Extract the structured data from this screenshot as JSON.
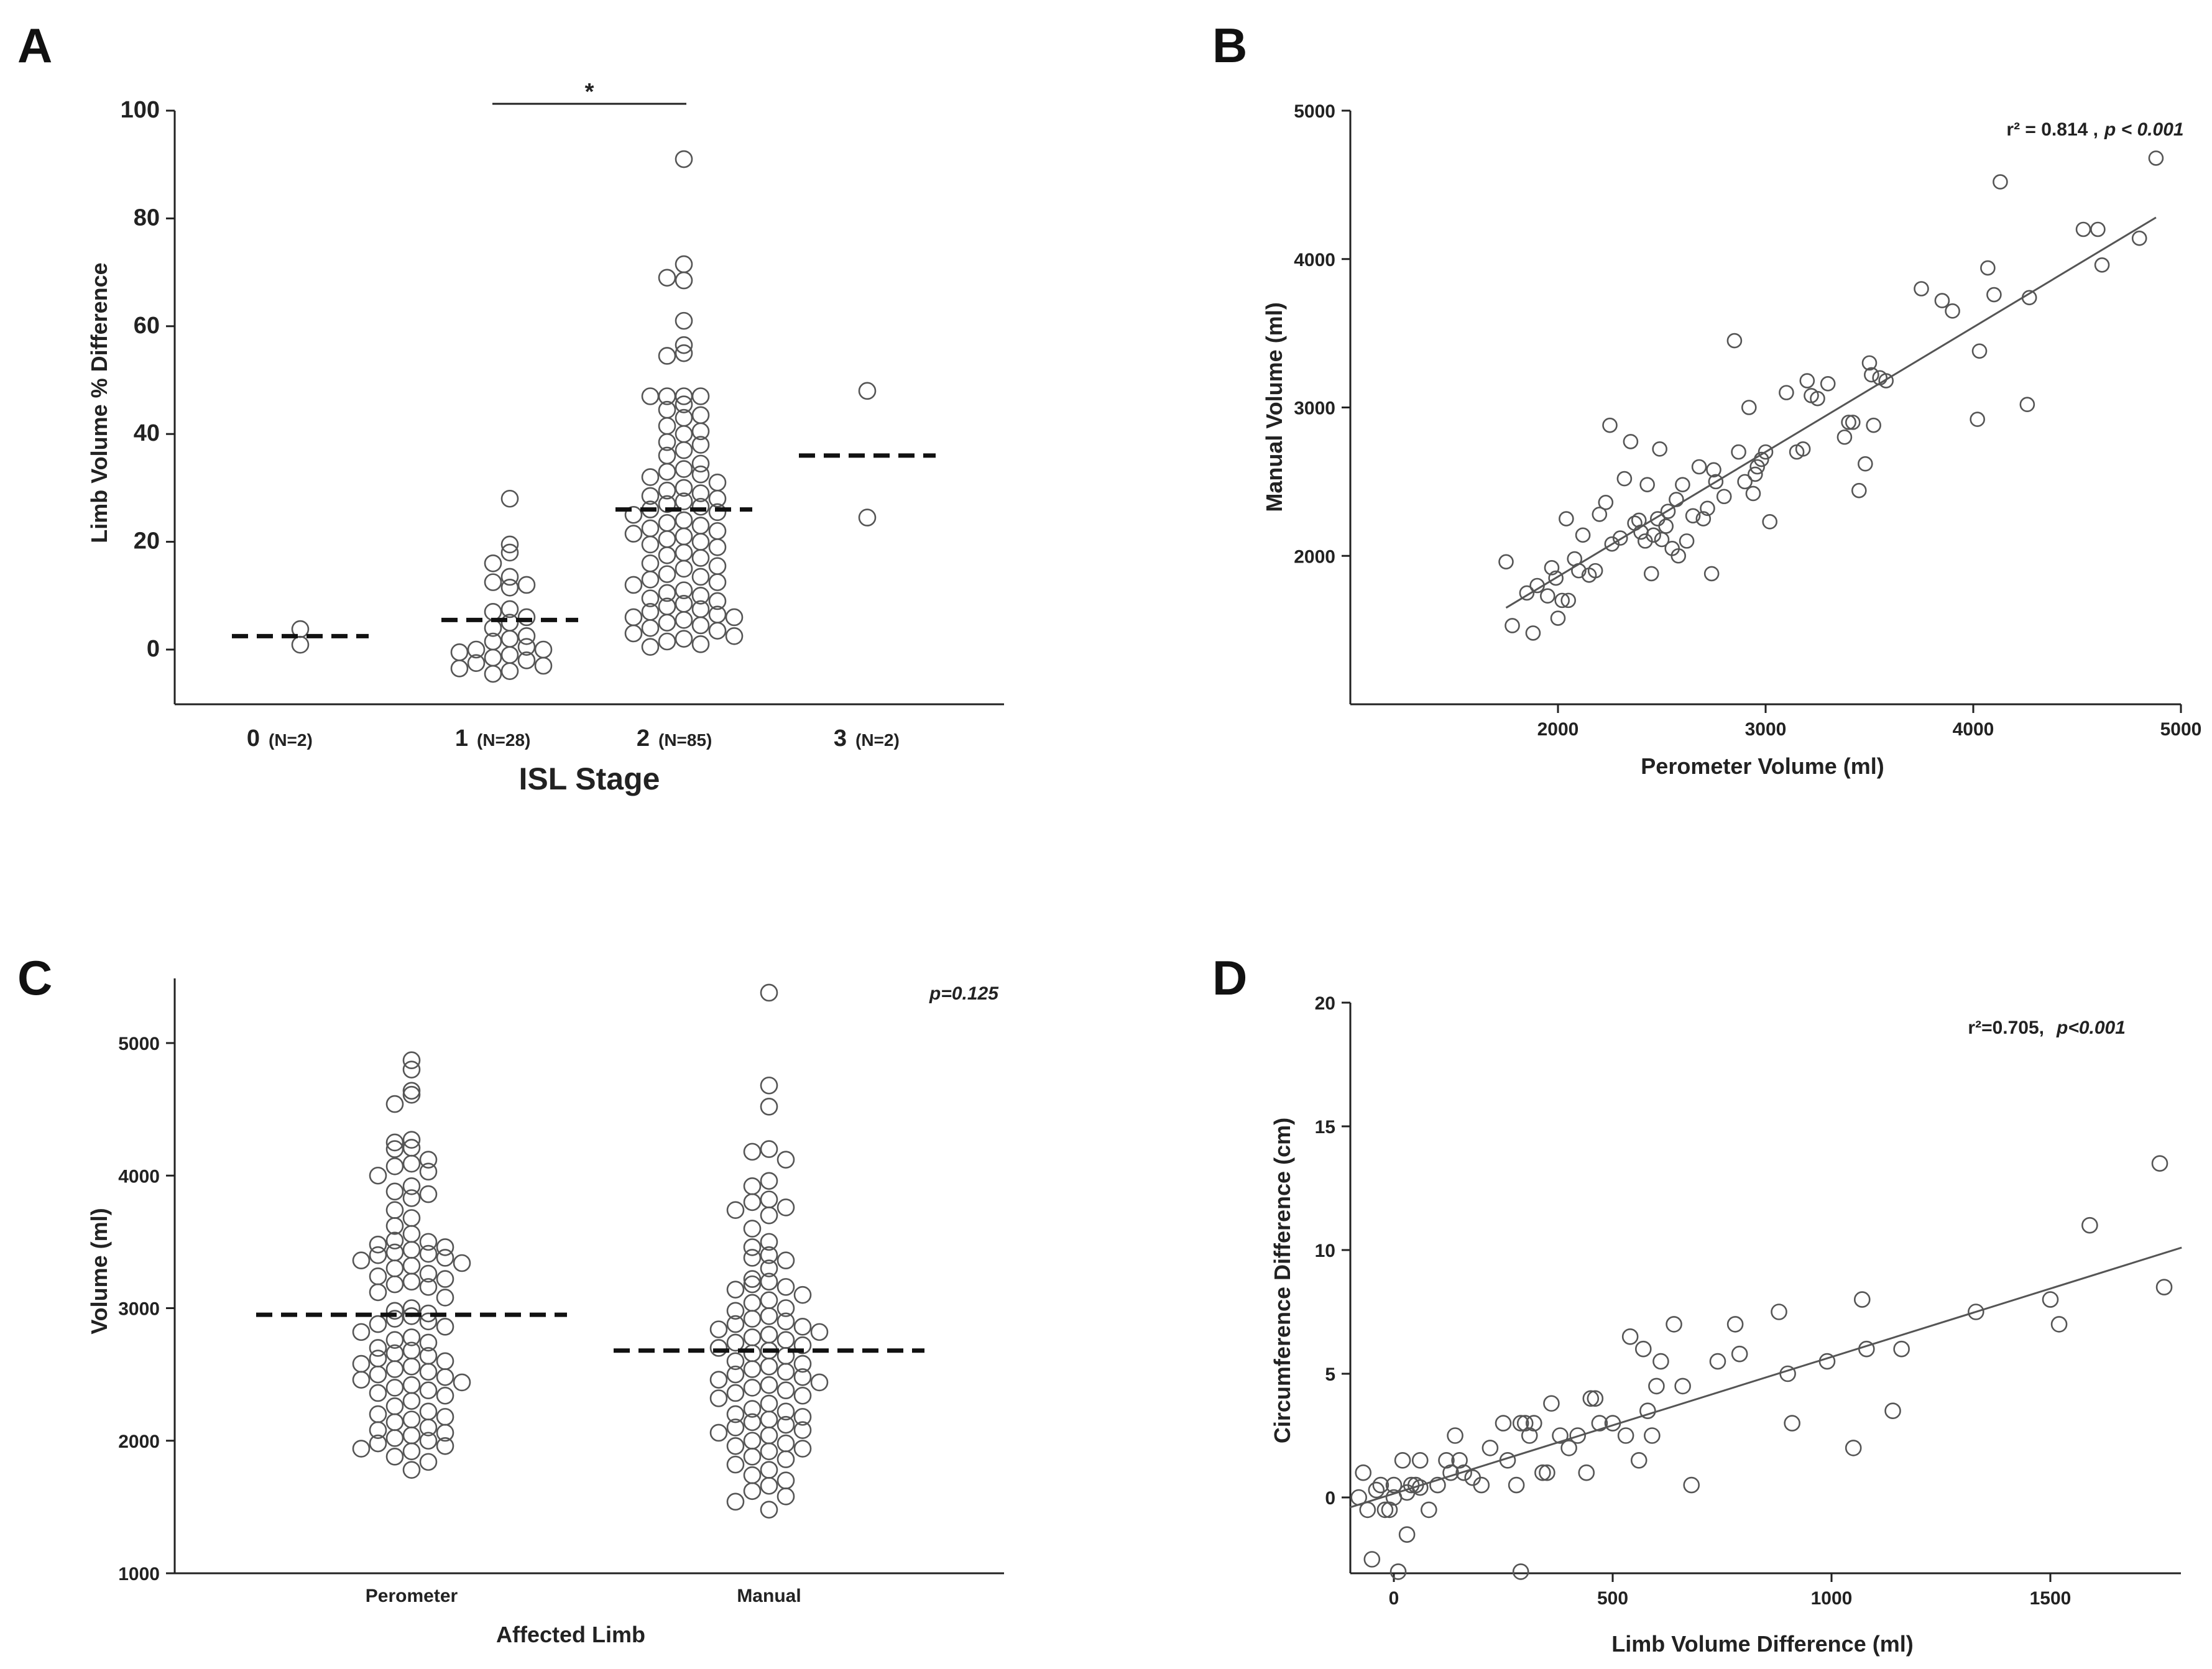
{
  "figure": {
    "panels": [
      "A",
      "B",
      "C",
      "D"
    ]
  },
  "chart_data": [
    {
      "id": "A",
      "type": "scatter",
      "subtype": "dot-strip",
      "title": "",
      "xlabel": "ISL Stage",
      "ylabel": "Limb Volume % Difference",
      "ylim": [
        -10,
        100
      ],
      "yticks": [
        0,
        20,
        40,
        60,
        80,
        100
      ],
      "categories": [
        "0",
        "1",
        "2",
        "3"
      ],
      "category_labels": [
        {
          "stage": "0",
          "n": "(N=2)"
        },
        {
          "stage": "1",
          "n": "(N=28)"
        },
        {
          "stage": "2",
          "n": "(N=85)"
        },
        {
          "stage": "3",
          "n": "(N=2)"
        }
      ],
      "means": [
        2.5,
        5.5,
        26,
        36
      ],
      "significance": {
        "from": "1",
        "to": "2",
        "label": "*"
      },
      "series": [
        {
          "name": "0",
          "values": [
            3.8,
            0.9
          ]
        },
        {
          "name": "1",
          "values": [
            28.0,
            19.5,
            18.0,
            16.0,
            13.5,
            12.5,
            12.0,
            11.5,
            7.5,
            7.0,
            6.0,
            5.0,
            4.0,
            2.5,
            2.0,
            1.5,
            0.5,
            0.0,
            0.0,
            -0.5,
            -1.0,
            -1.5,
            -2.0,
            -2.5,
            -3.0,
            -3.5,
            -4.0,
            -4.5
          ]
        },
        {
          "name": "2",
          "values": [
            91.0,
            71.5,
            69.0,
            68.5,
            61.0,
            56.5,
            55.0,
            54.5,
            47.0,
            47.0,
            47.0,
            47.0,
            45.5,
            44.5,
            43.5,
            43.0,
            41.5,
            40.5,
            40.0,
            38.5,
            38.0,
            37.0,
            36.0,
            34.5,
            33.5,
            33.0,
            32.5,
            32.0,
            31.0,
            30.0,
            29.5,
            29.0,
            28.5,
            28.0,
            27.5,
            27.0,
            26.5,
            26.0,
            25.5,
            25.0,
            24.0,
            23.5,
            23.0,
            22.5,
            22.0,
            21.5,
            21.0,
            20.5,
            20.0,
            19.5,
            19.0,
            18.0,
            17.5,
            17.0,
            16.0,
            15.5,
            15.0,
            14.0,
            13.5,
            13.0,
            12.5,
            12.0,
            11.0,
            10.5,
            10.0,
            9.5,
            9.0,
            8.5,
            8.0,
            7.5,
            7.0,
            6.5,
            6.0,
            6.0,
            5.5,
            5.0,
            4.5,
            4.0,
            3.5,
            3.0,
            2.5,
            2.0,
            1.5,
            1.0,
            0.5
          ]
        },
        {
          "name": "3",
          "values": [
            48.0,
            24.5
          ]
        }
      ]
    },
    {
      "id": "B",
      "type": "scatter",
      "title": "",
      "xlabel": "Perometer Volume (ml)",
      "ylabel": "Manual Volume (ml)",
      "xlim": [
        1000,
        5000
      ],
      "ylim": [
        1000,
        5000
      ],
      "xticks": [
        2000,
        3000,
        4000,
        5000
      ],
      "yticks": [
        2000,
        3000,
        4000,
        5000
      ],
      "annotation": {
        "text": "r² = 0.814 , p < 0.001",
        "r2_label": "r² = 0.814 ,",
        "p_label": "p < 0.001",
        "location": "top-right"
      },
      "fit_line": {
        "x": [
          1750,
          4880
        ],
        "y": [
          1650,
          4280
        ]
      },
      "x": [
        1750,
        1780,
        1850,
        1880,
        1900,
        1950,
        1970,
        1990,
        2000,
        2020,
        2040,
        2050,
        2080,
        2100,
        2120,
        2150,
        2180,
        2200,
        2230,
        2250,
        2260,
        2300,
        2320,
        2350,
        2370,
        2390,
        2400,
        2420,
        2430,
        2450,
        2460,
        2480,
        2490,
        2500,
        2520,
        2530,
        2550,
        2570,
        2580,
        2600,
        2620,
        2650,
        2680,
        2700,
        2720,
        2740,
        2750,
        2760,
        2800,
        2850,
        2870,
        2900,
        2920,
        2940,
        2950,
        2960,
        2980,
        3000,
        3020,
        3100,
        3150,
        3180,
        3200,
        3220,
        3250,
        3300,
        3380,
        3400,
        3420,
        3450,
        3480,
        3500,
        3510,
        3520,
        3550,
        3580,
        3750,
        3850,
        3900,
        4020,
        4030,
        4070,
        4100,
        4130,
        4260,
        4270,
        4530,
        4600,
        4620,
        4800,
        4880
      ],
      "y": [
        1960,
        1530,
        1750,
        1480,
        1800,
        1730,
        1920,
        1850,
        1580,
        1700,
        2250,
        1700,
        1980,
        1900,
        2140,
        1870,
        1900,
        2280,
        2360,
        2880,
        2080,
        2120,
        2520,
        2770,
        2220,
        2240,
        2160,
        2100,
        2480,
        1880,
        2140,
        2250,
        2720,
        2110,
        2200,
        2300,
        2050,
        2380,
        2000,
        2480,
        2100,
        2270,
        2600,
        2250,
        2320,
        1880,
        2580,
        2500,
        2400,
        3450,
        2700,
        2500,
        3000,
        2420,
        2550,
        2600,
        2650,
        2700,
        2230,
        3100,
        2700,
        2720,
        3180,
        3080,
        3060,
        3160,
        2800,
        2900,
        2900,
        2440,
        2620,
        3300,
        3220,
        2880,
        3200,
        3180,
        3800,
        3720,
        3650,
        2920,
        3380,
        3940,
        3760,
        4520,
        3020,
        3740,
        4200,
        4200,
        3960,
        4140,
        4680
      ]
    },
    {
      "id": "C",
      "type": "scatter",
      "subtype": "dot-strip",
      "title": "",
      "xlabel": "Affected Limb",
      "ylabel": "Volume (ml)",
      "ylim": [
        1000,
        5500
      ],
      "yticks": [
        1000,
        2000,
        3000,
        4000,
        5000
      ],
      "categories": [
        "Perometer",
        "Manual"
      ],
      "means": [
        2950,
        2680
      ],
      "annotation": {
        "text": "p=0.125",
        "location": "top-right"
      },
      "series": [
        {
          "name": "Perometer",
          "values": [
            4870,
            4800,
            4640,
            4610,
            4540,
            4270,
            4250,
            4210,
            4200,
            4120,
            4090,
            4070,
            4030,
            4000,
            3920,
            3880,
            3860,
            3830,
            3740,
            3680,
            3620,
            3560,
            3510,
            3500,
            3480,
            3460,
            3440,
            3420,
            3410,
            3400,
            3380,
            3360,
            3340,
            3320,
            3300,
            3260,
            3240,
            3220,
            3200,
            3180,
            3160,
            3120,
            3080,
            3000,
            2980,
            2960,
            2940,
            2920,
            2900,
            2880,
            2860,
            2820,
            2780,
            2760,
            2740,
            2700,
            2680,
            2660,
            2640,
            2620,
            2600,
            2580,
            2560,
            2540,
            2520,
            2500,
            2480,
            2460,
            2440,
            2420,
            2400,
            2380,
            2360,
            2340,
            2300,
            2260,
            2220,
            2200,
            2180,
            2160,
            2140,
            2100,
            2080,
            2060,
            2040,
            2020,
            2000,
            1980,
            1960,
            1940,
            1920,
            1880,
            1840,
            1780
          ]
        },
        {
          "name": "Manual",
          "values": [
            5380,
            4680,
            4520,
            4200,
            4180,
            4120,
            3960,
            3920,
            3820,
            3800,
            3760,
            3740,
            3700,
            3600,
            3500,
            3460,
            3400,
            3380,
            3360,
            3300,
            3220,
            3200,
            3180,
            3160,
            3140,
            3100,
            3060,
            3040,
            3000,
            2980,
            2940,
            2920,
            2900,
            2880,
            2860,
            2840,
            2820,
            2800,
            2780,
            2760,
            2740,
            2720,
            2700,
            2680,
            2660,
            2640,
            2600,
            2580,
            2560,
            2540,
            2520,
            2500,
            2480,
            2460,
            2440,
            2420,
            2400,
            2380,
            2360,
            2340,
            2320,
            2280,
            2240,
            2220,
            2200,
            2180,
            2160,
            2140,
            2120,
            2100,
            2080,
            2060,
            2040,
            2000,
            1980,
            1960,
            1940,
            1920,
            1880,
            1860,
            1820,
            1780,
            1740,
            1700,
            1660,
            1620,
            1580,
            1540,
            1480
          ]
        }
      ]
    },
    {
      "id": "D",
      "type": "scatter",
      "title": "",
      "xlabel": "Limb Volume Difference (ml)",
      "ylabel": "Circumference Difference (cm)",
      "xlim": [
        -100,
        1800
      ],
      "ylim": [
        -3,
        20
      ],
      "xticks": [
        0,
        500,
        1000,
        1500
      ],
      "yticks": [
        0,
        5,
        10,
        15,
        20
      ],
      "annotation": {
        "text": "r²=0.705,  p<0.001",
        "r2_label": "r²=0.705,",
        "p_label": "p<0.001",
        "location": "top-right"
      },
      "fit_line": {
        "x": [
          -100,
          1800
        ],
        "y": [
          -0.4,
          10.1
        ]
      },
      "x": [
        -80,
        -70,
        -60,
        -50,
        -40,
        -30,
        -20,
        -10,
        0,
        0,
        10,
        20,
        30,
        30,
        40,
        50,
        60,
        80,
        100,
        130,
        140,
        150,
        160,
        180,
        200,
        220,
        250,
        260,
        280,
        290,
        300,
        310,
        320,
        340,
        350,
        360,
        400,
        420,
        440,
        450,
        460,
        470,
        500,
        530,
        540,
        570,
        580,
        590,
        600,
        610,
        640,
        660,
        680,
        740,
        780,
        790,
        880,
        900,
        910,
        990,
        1050,
        1070,
        1080,
        1140,
        1160,
        1330,
        1500,
        1520,
        1590,
        1750,
        1760,
        290,
        60,
        120,
        380,
        560
      ],
      "y": [
        0.0,
        1.0,
        -0.5,
        -2.5,
        0.3,
        0.5,
        -0.5,
        -0.5,
        0.5,
        0.0,
        -3.0,
        1.5,
        -1.5,
        0.2,
        0.5,
        0.5,
        0.4,
        -0.5,
        0.5,
        1.0,
        2.5,
        1.5,
        1.0,
        0.8,
        0.5,
        2.0,
        3.0,
        1.5,
        0.5,
        -3.0,
        3.0,
        2.5,
        3.0,
        1.0,
        1.0,
        3.8,
        2.0,
        2.5,
        1.0,
        4.0,
        4.0,
        3.0,
        3.0,
        2.5,
        6.5,
        6.0,
        3.5,
        2.5,
        4.5,
        5.5,
        7.0,
        4.5,
        0.5,
        5.5,
        7.0,
        5.8,
        7.5,
        5.0,
        3.0,
        5.5,
        2.0,
        8.0,
        6.0,
        3.5,
        6.0,
        7.5,
        8.0,
        7.0,
        11.0,
        13.5,
        8.5,
        3.0,
        1.5,
        1.5,
        2.5,
        1.5
      ]
    }
  ]
}
